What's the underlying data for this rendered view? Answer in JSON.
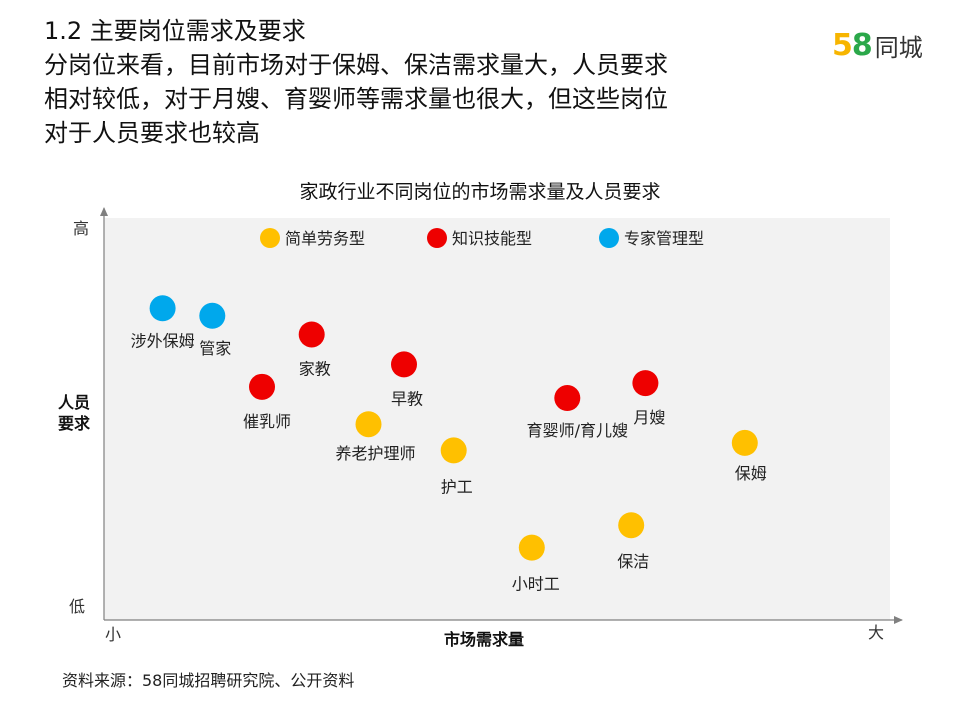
{
  "heading": {
    "section": "1.2 主要岗位需求及要求",
    "line1": "分岗位来看，目前市场对于保姆、保洁需求量大，人员要求",
    "line2": "相对较低，对于月嫂、育婴师等需求量也很大，但这些岗位",
    "line3": "对于人员要求也较高"
  },
  "logo": {
    "digit5": "5",
    "digit8": "8",
    "text": "同城"
  },
  "source": "资料来源：58同城招聘研究院、公开资料",
  "colors": {
    "simple_labor": "#ffc000",
    "knowledge_skill": "#ee0000",
    "expert_management": "#00a8ec",
    "plot_bg": "#f2f2f2",
    "axis": "#808080"
  },
  "chart_data": {
    "type": "scatter",
    "title": "家政行业不同岗位的市场需求量及人员要求",
    "xlabel": "市场需求量",
    "ylabel": "人员\n要求",
    "x_tick_labels": {
      "low": "小",
      "high": "大"
    },
    "y_tick_labels": {
      "low": "低",
      "high": "高"
    },
    "xlim": [
      0,
      100
    ],
    "ylim": [
      0,
      100
    ],
    "legend_position": "top",
    "grid": false,
    "series": [
      {
        "name": "简单劳务型",
        "color": "#ffc000",
        "points": [
          {
            "label": "养老护理师",
            "x": 35,
            "y": 47
          },
          {
            "label": "护工",
            "x": 47,
            "y": 40
          },
          {
            "label": "小时工",
            "x": 58,
            "y": 14
          },
          {
            "label": "保洁",
            "x": 72,
            "y": 20
          },
          {
            "label": "保姆",
            "x": 88,
            "y": 42
          }
        ]
      },
      {
        "name": "知识技能型",
        "color": "#ee0000",
        "points": [
          {
            "label": "家教",
            "x": 27,
            "y": 71
          },
          {
            "label": "催乳师",
            "x": 20,
            "y": 57
          },
          {
            "label": "早教",
            "x": 40,
            "y": 63
          },
          {
            "label": "育婴师/育儿嫂",
            "x": 63,
            "y": 54
          },
          {
            "label": "月嫂",
            "x": 74,
            "y": 58
          }
        ]
      },
      {
        "name": "专家管理型",
        "color": "#00a8ec",
        "points": [
          {
            "label": "涉外保姆",
            "x": 6,
            "y": 78
          },
          {
            "label": "管家",
            "x": 13,
            "y": 76
          }
        ]
      }
    ]
  }
}
